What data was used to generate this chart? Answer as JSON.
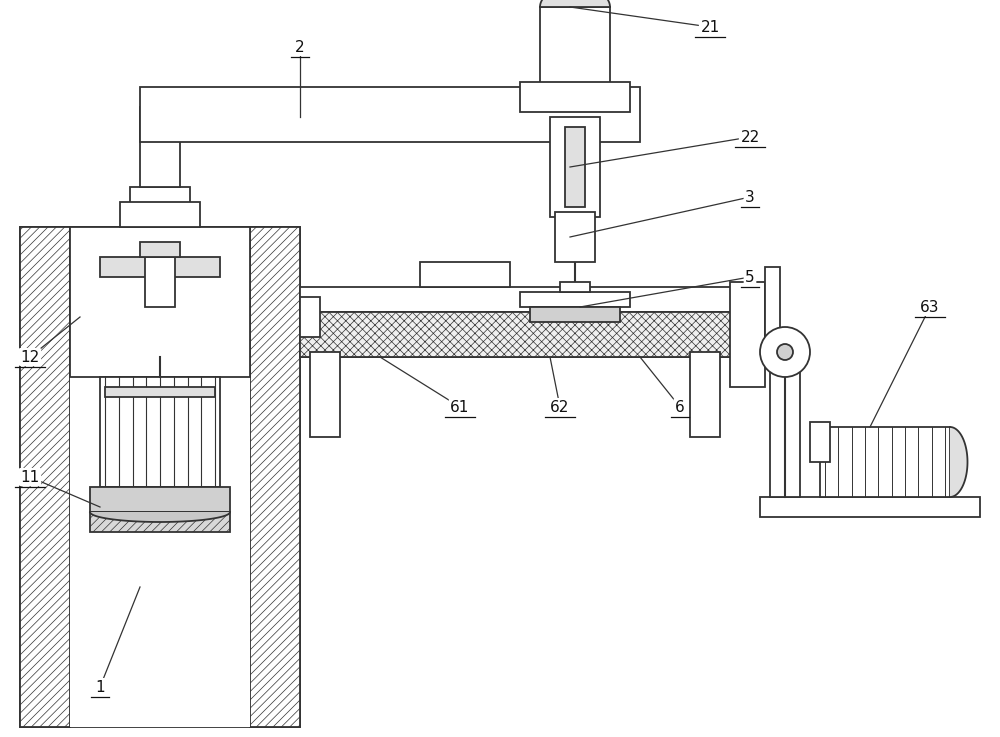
{
  "bg_color": "#ffffff",
  "lc": "#333333",
  "lw": 1.3,
  "hatch_lw": 0.5
}
